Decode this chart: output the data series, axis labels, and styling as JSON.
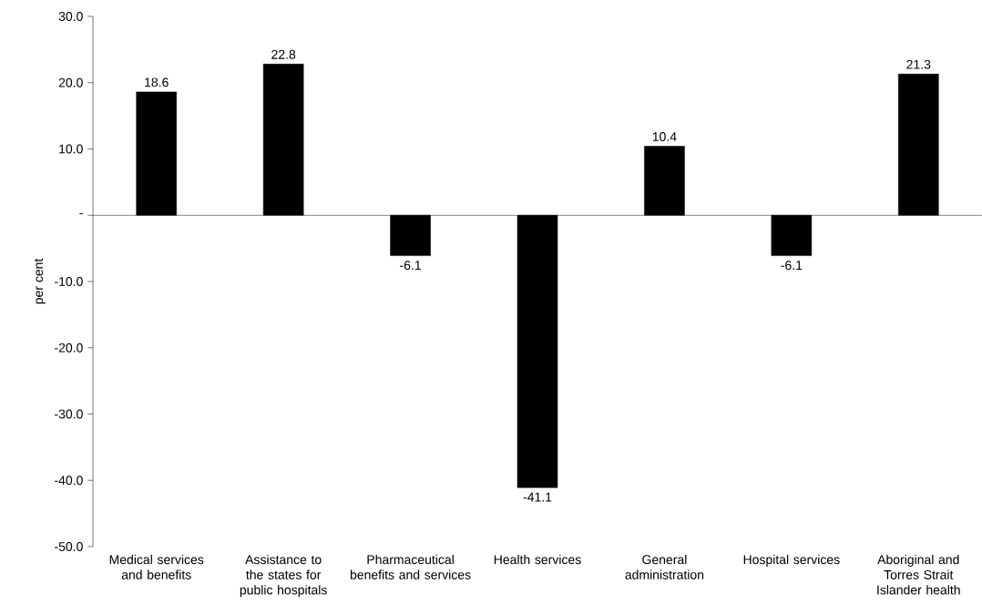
{
  "chart_data": {
    "type": "bar",
    "ylabel": "per cent",
    "categories": [
      "Medical services and benefits",
      "Assistance to the states for public hospitals",
      "Pharmaceutical benefits and services",
      "Health services",
      "General administration",
      "Hospital services",
      "Aboriginal and Torres Strait Islander health"
    ],
    "values": [
      18.6,
      22.8,
      -6.1,
      -41.1,
      10.4,
      -6.1,
      21.3
    ],
    "color": "#000000",
    "ylim": [
      -50,
      30
    ],
    "yticks": [
      {
        "value": -50,
        "label": "-50.0"
      },
      {
        "value": -40,
        "label": "-40.0"
      },
      {
        "value": -30,
        "label": "-30.0"
      },
      {
        "value": -20,
        "label": "-20.0"
      },
      {
        "value": -10,
        "label": "-10.0"
      },
      {
        "value": 0,
        "label": "-"
      },
      {
        "value": 10,
        "label": "10.0"
      },
      {
        "value": 20,
        "label": "20.0"
      },
      {
        "value": 30,
        "label": "30.0"
      }
    ],
    "data_labels": true
  }
}
